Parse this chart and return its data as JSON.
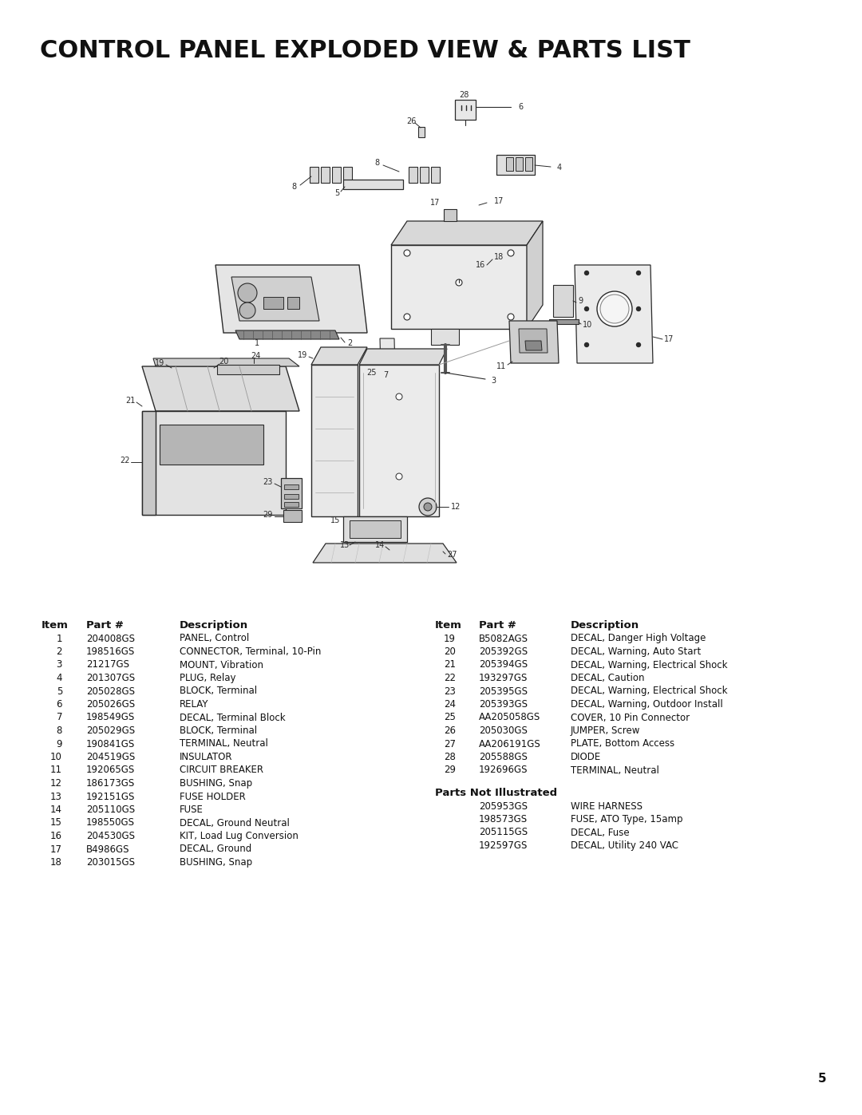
{
  "title": "CONTROL PANEL EXPLODED VIEW & PARTS LIST",
  "bg_color": "#ffffff",
  "title_fontsize": 22,
  "page_number": "5",
  "parts_left": [
    {
      "item": "1",
      "part": "204008GS",
      "desc": "PANEL, Control"
    },
    {
      "item": "2",
      "part": "198516GS",
      "desc": "CONNECTOR, Terminal, 10-Pin"
    },
    {
      "item": "3",
      "part": "21217GS",
      "desc": "MOUNT, Vibration"
    },
    {
      "item": "4",
      "part": "201307GS",
      "desc": "PLUG, Relay"
    },
    {
      "item": "5",
      "part": "205028GS",
      "desc": "BLOCK, Terminal"
    },
    {
      "item": "6",
      "part": "205026GS",
      "desc": "RELAY"
    },
    {
      "item": "7",
      "part": "198549GS",
      "desc": "DECAL, Terminal Block"
    },
    {
      "item": "8",
      "part": "205029GS",
      "desc": "BLOCK, Terminal"
    },
    {
      "item": "9",
      "part": "190841GS",
      "desc": "TERMINAL, Neutral"
    },
    {
      "item": "10",
      "part": "204519GS",
      "desc": "INSULATOR"
    },
    {
      "item": "11",
      "part": "192065GS",
      "desc": "CIRCUIT BREAKER"
    },
    {
      "item": "12",
      "part": "186173GS",
      "desc": "BUSHING, Snap"
    },
    {
      "item": "13",
      "part": "192151GS",
      "desc": "FUSE HOLDER"
    },
    {
      "item": "14",
      "part": "205110GS",
      "desc": "FUSE"
    },
    {
      "item": "15",
      "part": "198550GS",
      "desc": "DECAL, Ground Neutral"
    },
    {
      "item": "16",
      "part": "204530GS",
      "desc": "KIT, Load Lug Conversion"
    },
    {
      "item": "17",
      "part": "B4986GS",
      "desc": "DECAL, Ground"
    },
    {
      "item": "18",
      "part": "203015GS",
      "desc": "BUSHING, Snap"
    }
  ],
  "parts_right": [
    {
      "item": "19",
      "part": "B5082AGS",
      "desc": "DECAL, Danger High Voltage"
    },
    {
      "item": "20",
      "part": "205392GS",
      "desc": "DECAL, Warning, Auto Start"
    },
    {
      "item": "21",
      "part": "205394GS",
      "desc": "DECAL, Warning, Electrical Shock"
    },
    {
      "item": "22",
      "part": "193297GS",
      "desc": "DECAL, Caution"
    },
    {
      "item": "23",
      "part": "205395GS",
      "desc": "DECAL, Warning, Electrical Shock"
    },
    {
      "item": "24",
      "part": "205393GS",
      "desc": "DECAL, Warning, Outdoor Install"
    },
    {
      "item": "25",
      "part": "AA205058GS",
      "desc": "COVER, 10 Pin Connector"
    },
    {
      "item": "26",
      "part": "205030GS",
      "desc": "JUMPER, Screw"
    },
    {
      "item": "27",
      "part": "AA206191GS",
      "desc": "PLATE, Bottom Access"
    },
    {
      "item": "28",
      "part": "205588GS",
      "desc": "DIODE"
    },
    {
      "item": "29",
      "part": "192696GS",
      "desc": "TERMINAL, Neutral"
    }
  ],
  "parts_not_illustrated": [
    {
      "part": "205953GS",
      "desc": "WIRE HARNESS"
    },
    {
      "part": "198573GS",
      "desc": "FUSE, ATO Type, 15amp"
    },
    {
      "part": "205115GS",
      "desc": "DECAL, Fuse"
    },
    {
      "part": "192597GS",
      "desc": "DECAL, Utility 240 VAC"
    }
  ],
  "table_fontsize": 8.5,
  "header_fontsize": 9.5,
  "lc": "#2a2a2a",
  "lw": 1.0
}
